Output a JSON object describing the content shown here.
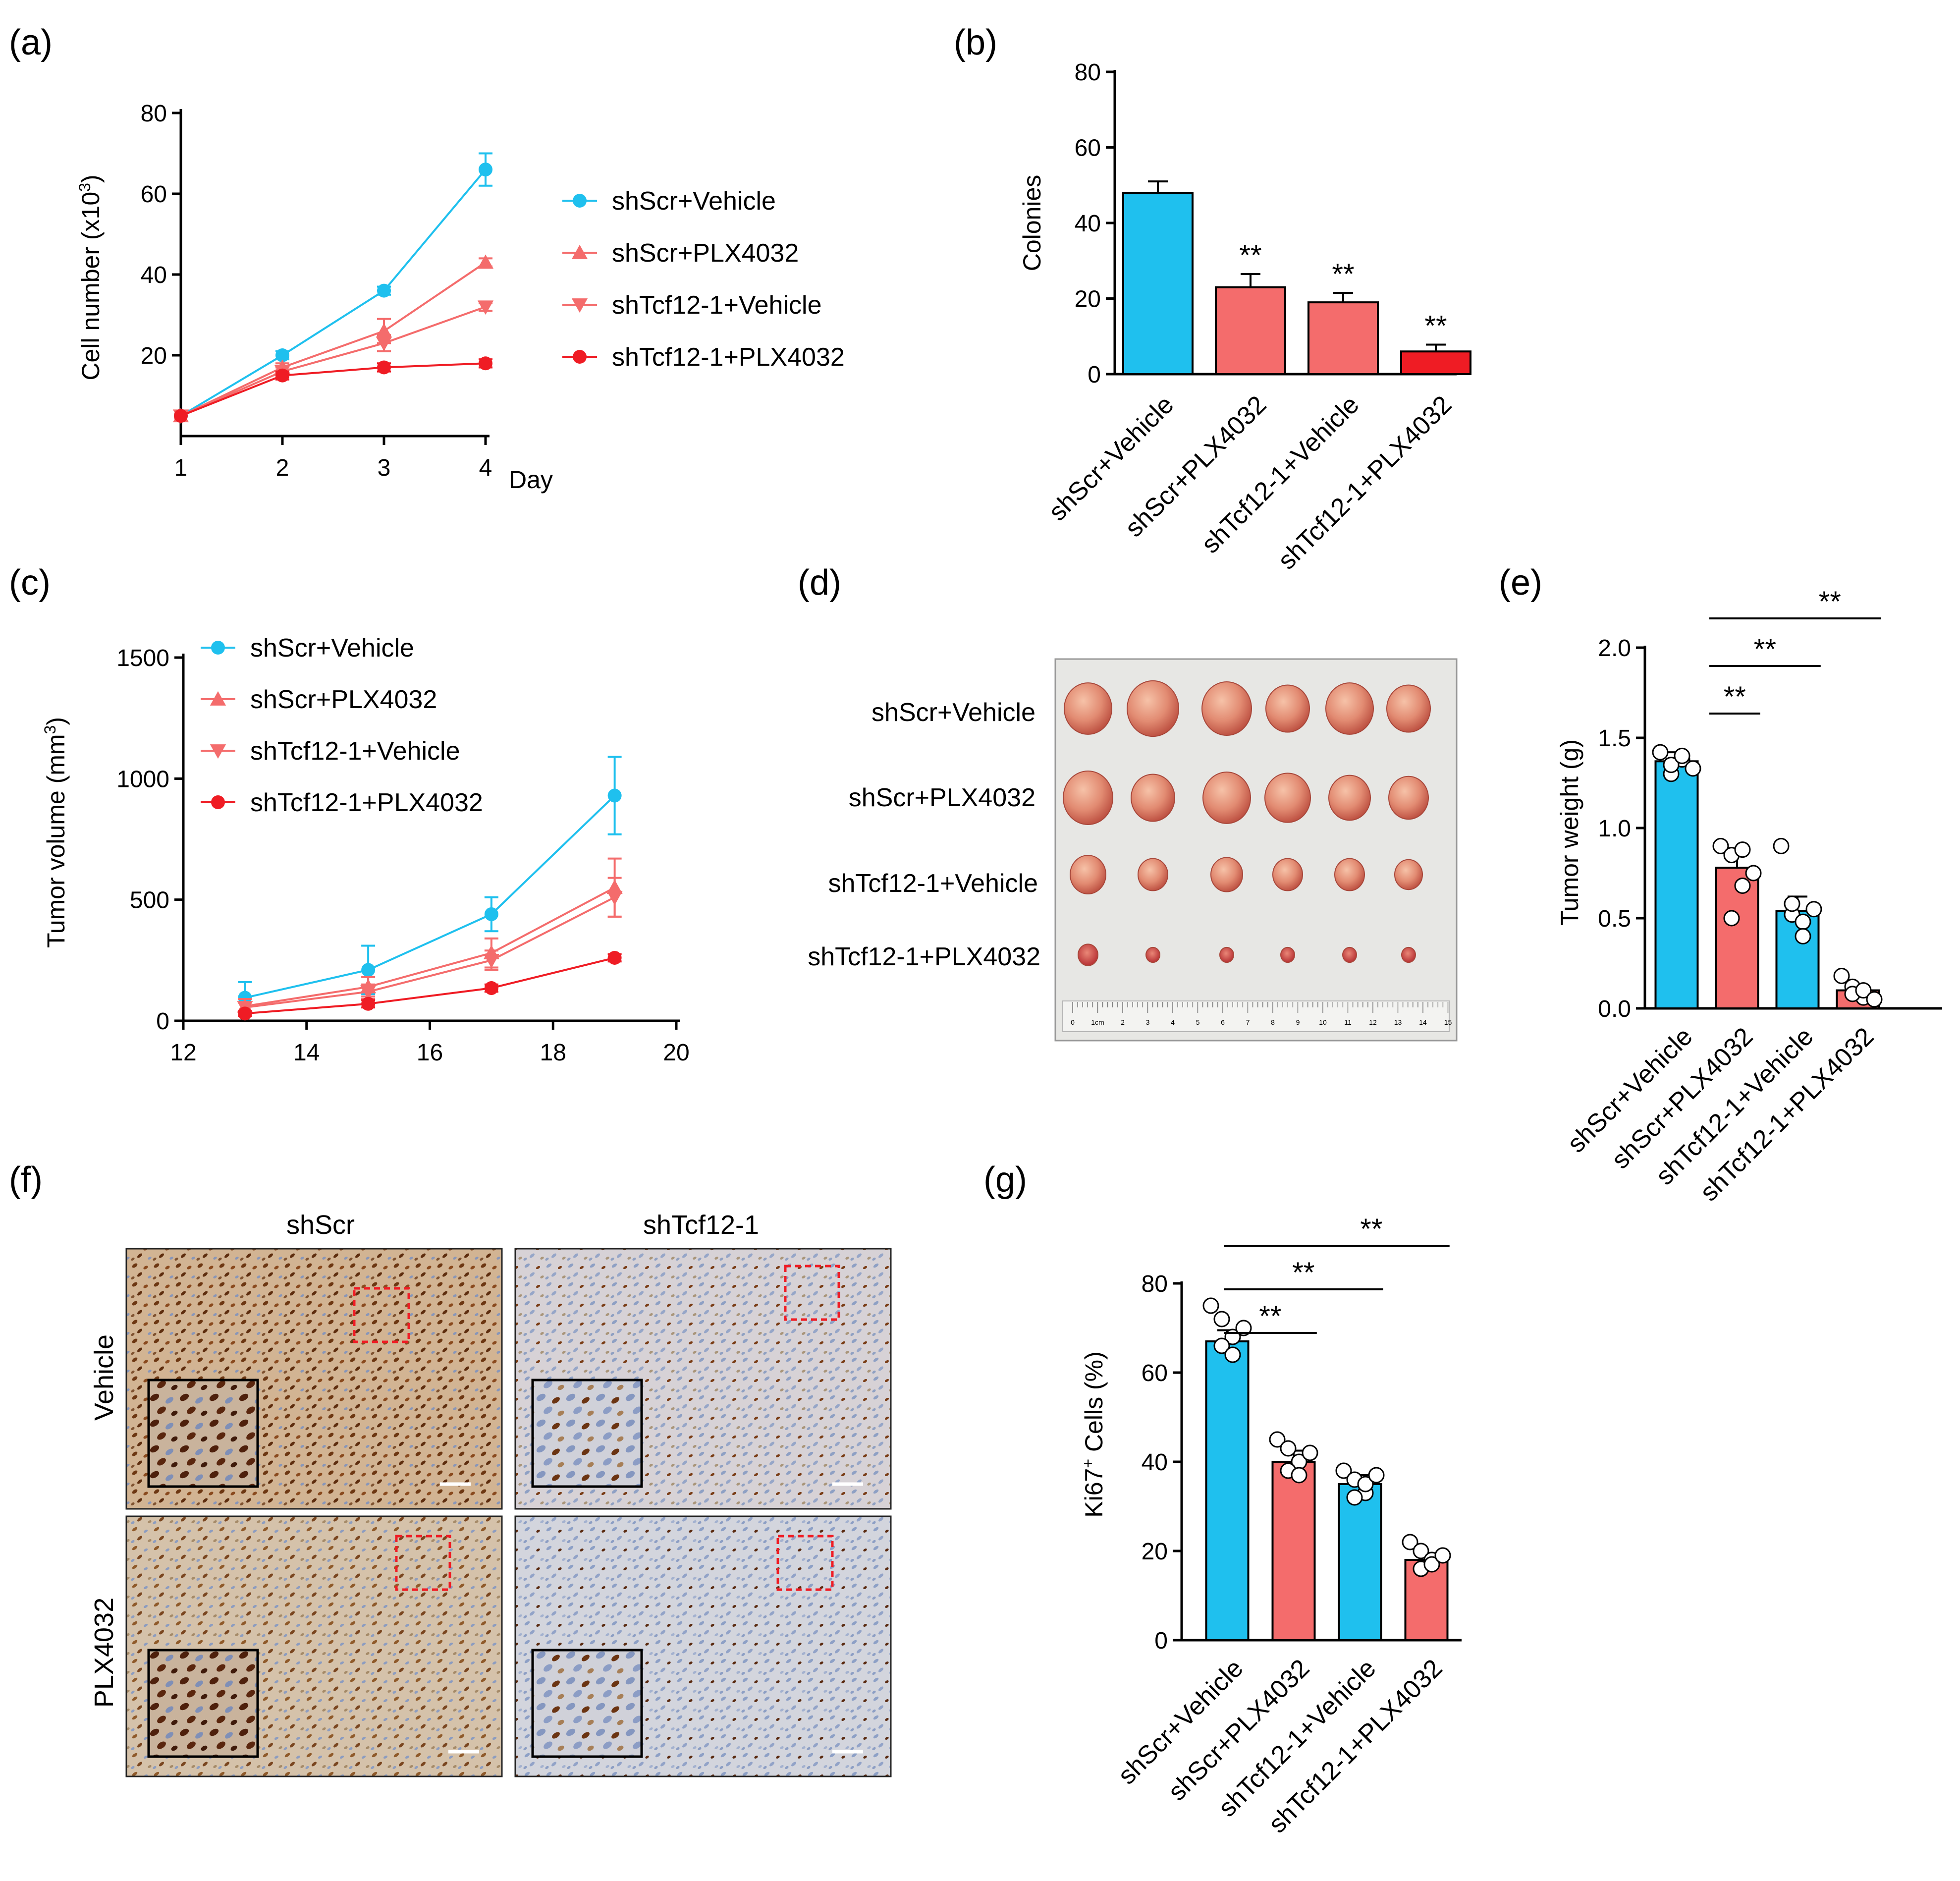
{
  "colors": {
    "cyan": "#1FC0EE",
    "pink": "#F46C6C",
    "red": "#EF1C24",
    "dark": "#000000"
  },
  "panel_letters": [
    "(a)",
    "(b)",
    "(c)",
    "(d)",
    "(e)",
    "(f)",
    "(g)"
  ],
  "chart_data": [
    {
      "id": "a",
      "type": "line",
      "title": "",
      "xlabel": "Day",
      "ylabel": "Cell number (x10^3)",
      "xlim": [
        1,
        4
      ],
      "ylim": [
        0,
        80
      ],
      "x_ticks": [
        "1",
        "2",
        "3",
        "4"
      ],
      "y_ticks": [
        "20",
        "40",
        "60",
        "80"
      ],
      "legend_position": "right",
      "series": [
        {
          "name": "shScr+Vehicle",
          "color": "#1FC0EE",
          "marker": "circle",
          "x": [
            1,
            2,
            3,
            4
          ],
          "y": [
            5,
            20,
            36,
            66
          ],
          "err": [
            0,
            1,
            1,
            4
          ]
        },
        {
          "name": "shScr+PLX4032",
          "color": "#F46C6C",
          "marker": "triangle-up",
          "x": [
            1,
            2,
            3,
            4
          ],
          "y": [
            5,
            17,
            26,
            43
          ],
          "err": [
            0,
            1,
            3,
            1
          ]
        },
        {
          "name": "shTcf12-1+Vehicle",
          "color": "#F46C6C",
          "marker": "triangle-down",
          "x": [
            1,
            2,
            3,
            4
          ],
          "y": [
            5,
            16,
            23,
            32
          ],
          "err": [
            0,
            1,
            2,
            1
          ]
        },
        {
          "name": "shTcf12-1+PLX4032",
          "color": "#EF1C24",
          "marker": "circle",
          "x": [
            1,
            2,
            3,
            4
          ],
          "y": [
            5,
            15,
            17,
            18
          ],
          "err": [
            0,
            1,
            1,
            1
          ]
        }
      ]
    },
    {
      "id": "b",
      "type": "bar",
      "title": "",
      "ylabel": "Colonies",
      "ylim": [
        0,
        80
      ],
      "y_ticks": [
        "0",
        "20",
        "40",
        "60",
        "80"
      ],
      "categories": [
        "shScr+Vehicle",
        "shScr+PLX4032",
        "shTcf12-1+Vehicle",
        "shTcf12-1+PLX4032"
      ],
      "values": [
        48,
        23,
        19,
        6
      ],
      "err": [
        3,
        3.5,
        2.5,
        1.8
      ],
      "colors": [
        "#1FC0EE",
        "#F46C6C",
        "#F46C6C",
        "#EF1C24"
      ],
      "annotations": [
        "",
        "**",
        "**",
        "**"
      ]
    },
    {
      "id": "c",
      "type": "line",
      "title": "",
      "xlabel": "",
      "ylabel": "Tumor volume (mm^3)",
      "xlim": [
        12,
        20
      ],
      "ylim": [
        0,
        1500
      ],
      "x_ticks": [
        "12",
        "14",
        "16",
        "18",
        "20"
      ],
      "y_ticks": [
        "0",
        "500",
        "1000",
        "1500"
      ],
      "legend_position": "top-left",
      "series": [
        {
          "name": "shScr+Vehicle",
          "color": "#1FC0EE",
          "marker": "circle",
          "x": [
            13,
            15,
            17,
            19
          ],
          "y": [
            95,
            210,
            440,
            930
          ],
          "err": [
            65,
            100,
            70,
            160
          ]
        },
        {
          "name": "shScr+PLX4032",
          "color": "#F46C6C",
          "marker": "triangle-up",
          "x": [
            13,
            15,
            17,
            19
          ],
          "y": [
            60,
            140,
            280,
            550
          ],
          "err": [
            30,
            40,
            60,
            120
          ]
        },
        {
          "name": "shTcf12-1+Vehicle",
          "color": "#F46C6C",
          "marker": "triangle-down",
          "x": [
            13,
            15,
            17,
            19
          ],
          "y": [
            55,
            120,
            250,
            510
          ],
          "err": [
            20,
            30,
            40,
            80
          ]
        },
        {
          "name": "shTcf12-1+PLX4032",
          "color": "#EF1C24",
          "marker": "circle",
          "x": [
            13,
            15,
            17,
            19
          ],
          "y": [
            30,
            70,
            135,
            260
          ],
          "err": [
            10,
            15,
            15,
            15
          ]
        }
      ]
    },
    {
      "id": "e",
      "type": "bar",
      "title": "",
      "ylabel": "Tumor weight (g)",
      "ylim": [
        0,
        2.0
      ],
      "y_ticks": [
        "0.0",
        "0.5",
        "1.0",
        "1.5",
        "2.0"
      ],
      "categories": [
        "shScr+Vehicle",
        "shScr+PLX4032",
        "shTcf12-1+Vehicle",
        "shTcf12-1+PLX4032"
      ],
      "values": [
        1.37,
        0.78,
        0.54,
        0.1
      ],
      "err": [
        0.05,
        0.08,
        0.08,
        0.03
      ],
      "colors": [
        "#1FC0EE",
        "#F46C6C",
        "#1FC0EE",
        "#F46C6C"
      ],
      "points": [
        [
          1.42,
          1.3,
          1.38,
          1.35,
          1.4,
          1.33
        ],
        [
          0.9,
          0.85,
          0.68,
          0.5,
          0.88,
          0.75
        ],
        [
          0.9,
          0.52,
          0.48,
          0.58,
          0.4,
          0.55
        ],
        [
          0.18,
          0.12,
          0.06,
          0.08,
          0.1,
          0.05
        ]
      ],
      "significance": [
        {
          "from": 0,
          "to": 1,
          "label": "**"
        },
        {
          "from": 0,
          "to": 2,
          "label": "**"
        },
        {
          "from": 0,
          "to": 3,
          "label": "**"
        }
      ]
    },
    {
      "id": "g",
      "type": "bar",
      "title": "",
      "ylabel": "Ki67+ Cells (%)",
      "ylim": [
        0,
        80
      ],
      "y_ticks": [
        "0",
        "20",
        "40",
        "60",
        "80"
      ],
      "categories": [
        "shScr+Vehicle",
        "shScr+PLX4032",
        "shTcf12-1+Vehicle",
        "shTcf12-1+PLX4032"
      ],
      "values": [
        67,
        40,
        35,
        18
      ],
      "err": [
        2.5,
        2.5,
        2,
        1.5
      ],
      "colors": [
        "#1FC0EE",
        "#F46C6C",
        "#1FC0EE",
        "#F46C6C"
      ],
      "points": [
        [
          75,
          72,
          68,
          66,
          64,
          70
        ],
        [
          45,
          43,
          40,
          38,
          37,
          42
        ],
        [
          38,
          36,
          33,
          32,
          35,
          37
        ],
        [
          22,
          20,
          18,
          16,
          17,
          19
        ]
      ],
      "significance": [
        {
          "from": 0,
          "to": 1,
          "label": "**"
        },
        {
          "from": 0,
          "to": 2,
          "label": "**"
        },
        {
          "from": 0,
          "to": 3,
          "label": "**"
        }
      ]
    }
  ],
  "panel_d": {
    "rows": [
      "shScr+Vehicle",
      "shScr+PLX4032",
      "shTcf12-1+Vehicle",
      "shTcf12-1+PLX4032"
    ],
    "ruler_labels": [
      "0",
      "1cm",
      "2",
      "3",
      "4",
      "5",
      "6",
      "7",
      "8",
      "9",
      "10",
      "11",
      "12",
      "13",
      "14",
      "15"
    ]
  },
  "panel_f": {
    "columns": [
      "shScr",
      "shTcf12-1"
    ],
    "rows": [
      "Vehicle",
      "PLX4032"
    ]
  }
}
